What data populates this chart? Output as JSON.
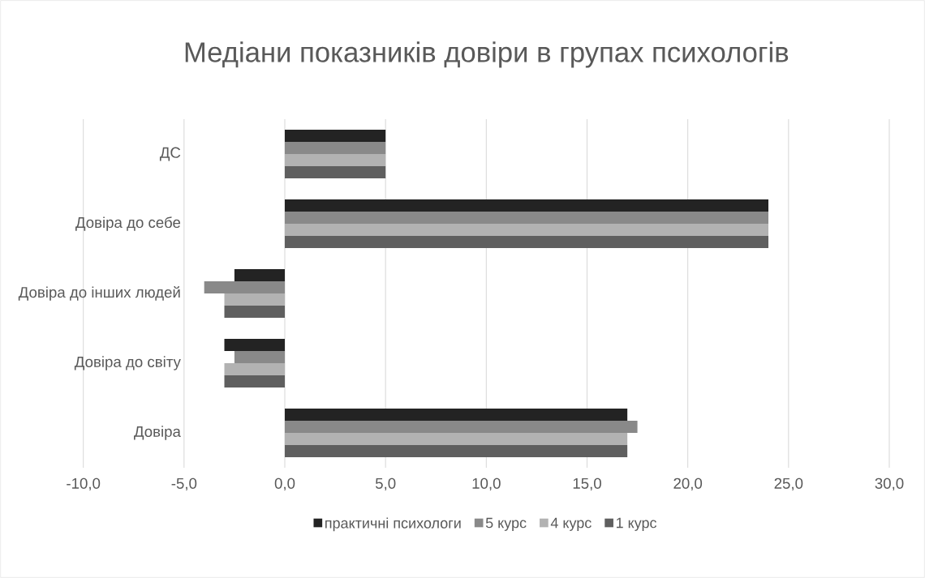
{
  "chart_data": {
    "type": "bar",
    "orientation": "horizontal",
    "title": "Медіани показників довіри в групах психологів",
    "categories": [
      "ДС",
      "Довіра до себе",
      "Довіра до інших людей",
      "Довіра до світу",
      "Довіра"
    ],
    "series": [
      {
        "name": "практичні психологи",
        "color": "#232323",
        "values": [
          5,
          24,
          -2.5,
          -3,
          17
        ]
      },
      {
        "name": "5 курс",
        "color": "#898989",
        "values": [
          5,
          24,
          -4,
          -2.5,
          17.5
        ]
      },
      {
        "name": "4 курс",
        "color": "#b2b2b2",
        "values": [
          5,
          24,
          -3,
          -3,
          17
        ]
      },
      {
        "name": "1 курс",
        "color": "#5f5f5f",
        "values": [
          5,
          24,
          -3,
          -3,
          17
        ]
      }
    ],
    "xlim": [
      -10,
      30
    ],
    "xticks": [
      {
        "value": -10,
        "label": "-10,0"
      },
      {
        "value": -5,
        "label": "-5,0"
      },
      {
        "value": 0,
        "label": "0,0"
      },
      {
        "value": 5,
        "label": "5,0"
      },
      {
        "value": 10,
        "label": "10,0"
      },
      {
        "value": 15,
        "label": "15,0"
      },
      {
        "value": 20,
        "label": "20,0"
      },
      {
        "value": 25,
        "label": "25,0"
      },
      {
        "value": 30,
        "label": "30,0"
      }
    ],
    "grid": "x",
    "legend": "bottom"
  }
}
